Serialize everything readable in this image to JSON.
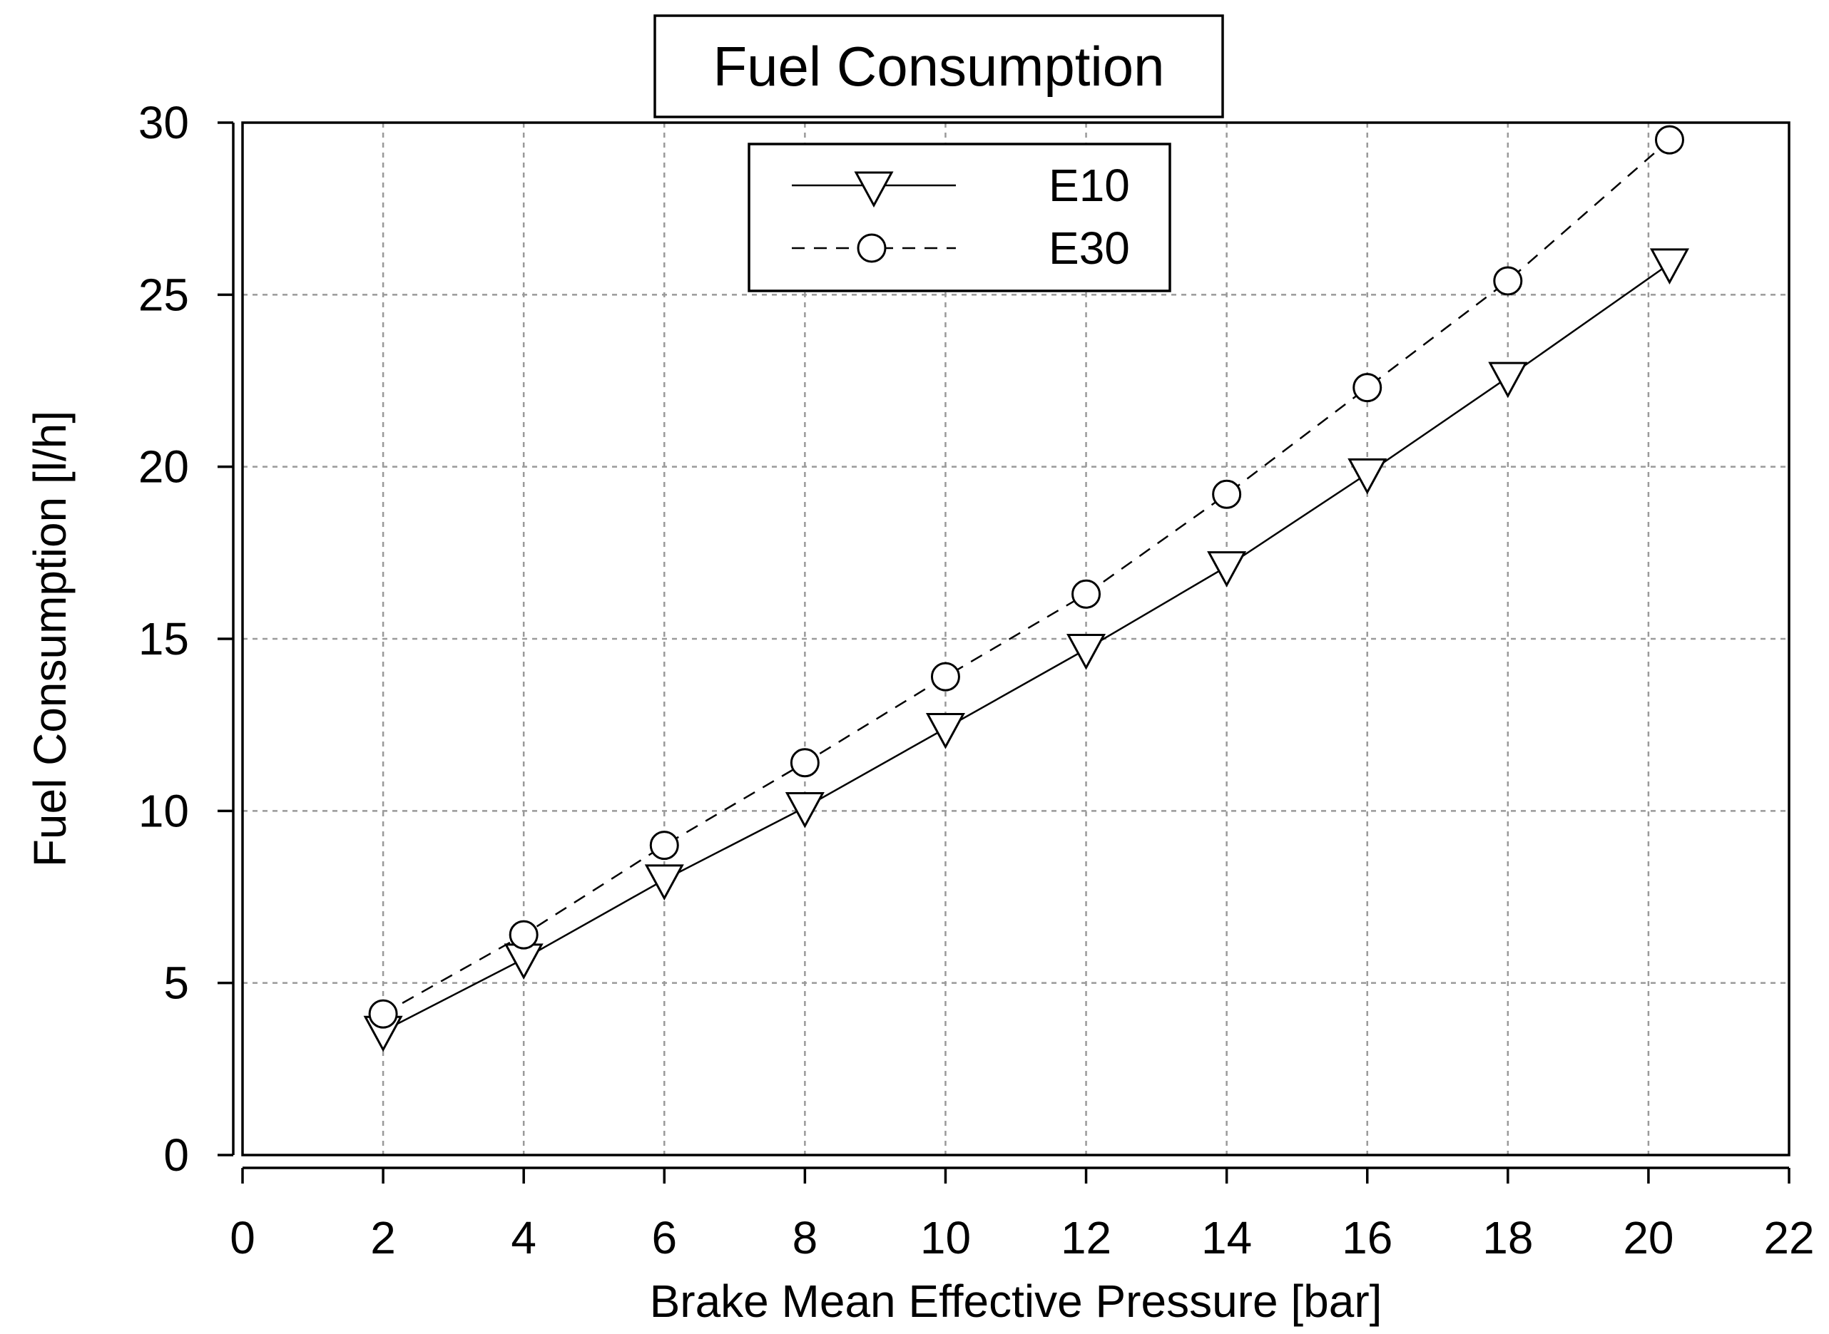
{
  "chart_data": {
    "type": "line",
    "title": "Fuel Consumption",
    "xlabel": "Brake Mean Effective Pressure [bar]",
    "ylabel": "Fuel Consumption [l/h]",
    "xlim": [
      0,
      22
    ],
    "ylim": [
      0,
      30
    ],
    "xticks": [
      0,
      2,
      4,
      6,
      8,
      10,
      12,
      14,
      16,
      18,
      20,
      22
    ],
    "yticks": [
      0,
      5,
      10,
      15,
      20,
      25,
      30
    ],
    "grid": true,
    "legend_position": "top-center",
    "series": [
      {
        "name": "E10",
        "marker": "triangle-down",
        "line_style": "solid",
        "x": [
          2,
          4,
          6,
          8,
          10,
          12,
          14,
          16,
          18,
          20.3
        ],
        "y": [
          3.6,
          5.7,
          8.0,
          10.1,
          12.4,
          14.7,
          17.1,
          19.8,
          22.6,
          25.9
        ]
      },
      {
        "name": "E30",
        "marker": "circle",
        "line_style": "dashed",
        "x": [
          2,
          4,
          6,
          8,
          10,
          12,
          14,
          16,
          18,
          20.3
        ],
        "y": [
          4.1,
          6.4,
          9.0,
          11.4,
          13.9,
          16.3,
          19.2,
          22.3,
          25.4,
          29.5
        ]
      }
    ]
  },
  "colors": {
    "line": "#000000",
    "grid": "#9a9a9a",
    "background": "#ffffff"
  }
}
